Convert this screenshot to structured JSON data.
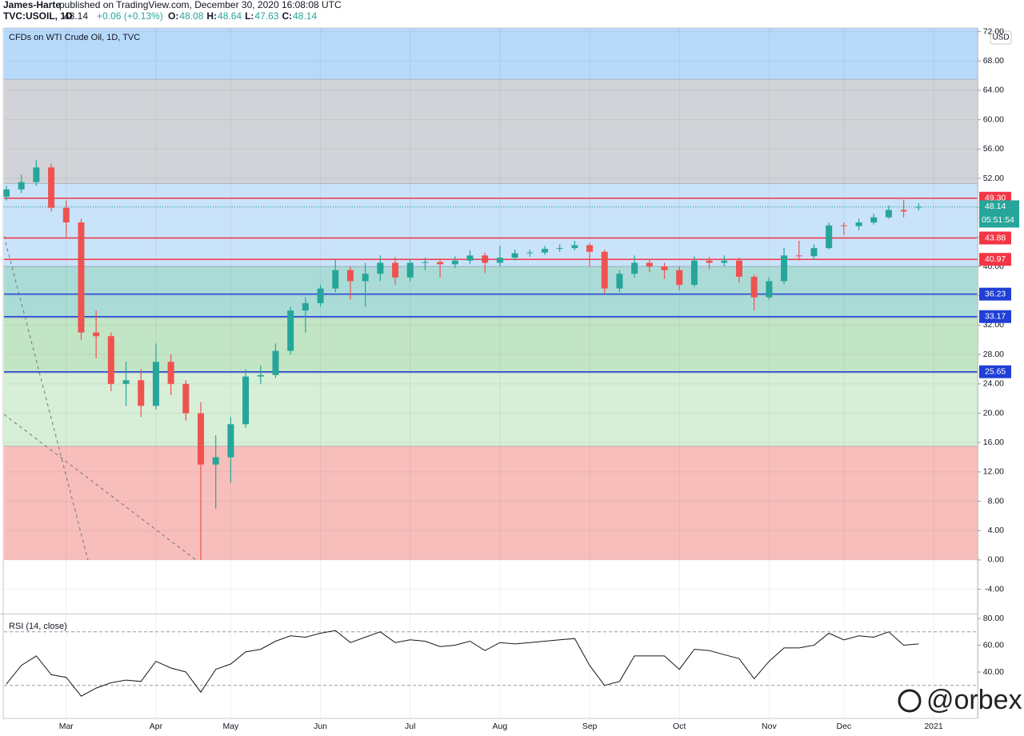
{
  "header": {
    "author": "James-Harte",
    "published": "published on TradingView.com, December 30, 2020 16:08:08 UTC",
    "symbol": "TVC:USOIL, 1D",
    "last": "48.14",
    "change": "+0.06 (+0.13%)",
    "ohlc": [
      {
        "key": "O:",
        "value": "48.08"
      },
      {
        "key": "H:",
        "value": "48.64"
      },
      {
        "key": "L:",
        "value": "47.63"
      },
      {
        "key": "C:",
        "value": "48.14"
      }
    ]
  },
  "chart_data": [
    {
      "type": "candlestick",
      "title": "CFDs on WTI Crude Oil, 1D, TVC",
      "currency": "USD",
      "categories": [
        null,
        null,
        null,
        null,
        "Mar",
        null,
        null,
        null,
        null,
        null,
        "Apr",
        null,
        null,
        null,
        null,
        "May",
        null,
        null,
        null,
        null,
        null,
        "Jun",
        null,
        null,
        null,
        null,
        null,
        "Jul",
        null,
        null,
        null,
        null,
        null,
        "Aug",
        null,
        null,
        null,
        null,
        null,
        "Sep",
        null,
        null,
        null,
        null,
        null,
        "Oct",
        null,
        null,
        null,
        null,
        null,
        "Nov",
        null,
        null,
        null,
        null,
        "Dec",
        null,
        null,
        null,
        null,
        null,
        "2021"
      ],
      "open": [
        49.5,
        50.5,
        51.5,
        53.5,
        48,
        46,
        31,
        30.5,
        24,
        24.5,
        21,
        27,
        24,
        20,
        13,
        14,
        18.5,
        25,
        25.2,
        28.5,
        34,
        35,
        37,
        39.5,
        38,
        39,
        40.5,
        38.5,
        40.5,
        40.6,
        40.3,
        40.8,
        41.5,
        40.5,
        41.2,
        41.8,
        41.9,
        42.4,
        42.5,
        42.9,
        42,
        37,
        39,
        40.5,
        40,
        39.5,
        37.5,
        40.8,
        40.5,
        40.8,
        38.6,
        35.8,
        38,
        41.5,
        41.4,
        42.5,
        45.6,
        45.5,
        46,
        46.7,
        47.7,
        48.08,
        null
      ],
      "high": [
        51,
        52.5,
        54.5,
        54,
        49,
        46.5,
        34,
        31,
        27,
        26,
        29.5,
        28,
        24.5,
        21.5,
        17,
        19.5,
        26,
        26.5,
        29.5,
        34.5,
        35.8,
        37.5,
        41,
        40,
        40.5,
        41.5,
        41.3,
        41,
        41.2,
        41,
        41.4,
        42.2,
        41.9,
        42.8,
        42.3,
        42.3,
        42.8,
        43,
        43.5,
        43.2,
        42.3,
        39.5,
        41.5,
        41,
        40.5,
        40,
        41.4,
        41.3,
        41.5,
        41.2,
        38.9,
        38.5,
        42.5,
        43.5,
        43,
        46,
        46,
        46.5,
        47.2,
        48.3,
        49.1,
        48.64,
        null
      ],
      "low": [
        49,
        50,
        51,
        47.5,
        44,
        30,
        27.5,
        23,
        21,
        19.5,
        20.5,
        22.5,
        19,
        0,
        7,
        10.5,
        18,
        24,
        24.8,
        28,
        31,
        34.5,
        36.5,
        35.5,
        34.5,
        38,
        37.5,
        38,
        39.5,
        38.5,
        39.8,
        40.3,
        39.1,
        40,
        40.8,
        41.3,
        41.6,
        42,
        42.2,
        40,
        36.3,
        36.5,
        38.5,
        39.2,
        38.3,
        36.8,
        37.2,
        39.6,
        40,
        37.8,
        34,
        35.5,
        37.6,
        40.8,
        40.9,
        42.3,
        44.3,
        44.9,
        45.7,
        46.5,
        46.7,
        47.63,
        null
      ],
      "close": [
        50.5,
        51.5,
        53.5,
        48,
        46,
        31,
        30.5,
        24,
        24.5,
        21,
        27,
        24,
        20,
        13,
        14,
        18.5,
        25,
        25.2,
        28.5,
        34,
        35,
        37,
        39.5,
        38,
        39,
        40.5,
        38.5,
        40.5,
        40.6,
        40.3,
        40.8,
        41.5,
        40.5,
        41.2,
        41.8,
        41.9,
        42.4,
        42.5,
        42.9,
        42,
        37,
        39,
        40.5,
        40,
        39.5,
        37.5,
        40.8,
        40.5,
        40.8,
        38.6,
        35.8,
        38,
        41.5,
        41.4,
        42.5,
        45.6,
        45.5,
        46,
        46.7,
        47.7,
        47.5,
        48.14,
        null
      ],
      "up_color": "#26a69a",
      "down_color": "#ef5350",
      "ylim": [
        -7.2,
        72.5
      ],
      "yticks": [
        {
          "value": -4,
          "label": "-4.00"
        },
        {
          "value": 0,
          "label": "0.00"
        },
        {
          "value": 4,
          "label": "4.00"
        },
        {
          "value": 8,
          "label": "8.00"
        },
        {
          "value": 12,
          "label": "12.00"
        },
        {
          "value": 16,
          "label": "16.00"
        },
        {
          "value": 20,
          "label": "20.00"
        },
        {
          "value": 24,
          "label": "24.00"
        },
        {
          "value": 28,
          "label": "28.00"
        },
        {
          "value": 32,
          "label": "32.00"
        },
        {
          "value": 36,
          "label": "36.00"
        },
        {
          "value": 40,
          "label": "40.00"
        },
        {
          "value": 44,
          "label": "44.00"
        },
        {
          "value": 48,
          "label": "48.00"
        },
        {
          "value": 52,
          "label": "52.00"
        },
        {
          "value": 56,
          "label": "56.00"
        },
        {
          "value": 60,
          "label": "60.00"
        },
        {
          "value": 64,
          "label": "64.00"
        },
        {
          "value": 68,
          "label": "68.00"
        },
        {
          "value": 72,
          "label": "72.00"
        }
      ],
      "grid": true,
      "zones": [
        {
          "from": 65.5,
          "to": 72.5,
          "color": "#b3d7fa"
        },
        {
          "from": 51.3,
          "to": 65.5,
          "color": "#cfd1d6"
        },
        {
          "from": 40,
          "to": 51.3,
          "color": "#c6e1fa"
        },
        {
          "from": 33,
          "to": 40,
          "color": "#a6d9d5"
        },
        {
          "from": 25.5,
          "to": 33,
          "color": "#bfe4c2"
        },
        {
          "from": 15.5,
          "to": 25.5,
          "color": "#d5edd5"
        },
        {
          "from": 0,
          "to": 15.5,
          "color": "#f8bab7"
        }
      ],
      "levels": [
        {
          "value": 49.3,
          "label": "49.30",
          "color": "#f23645"
        },
        {
          "value": 43.88,
          "label": "43.88",
          "color": "#f23645"
        },
        {
          "value": 40.97,
          "label": "40.97",
          "color": "#f23645"
        },
        {
          "value": 36.23,
          "label": "36.23",
          "color": "#1f3fd6"
        },
        {
          "value": 33.17,
          "label": "33.17",
          "color": "#1f3fd6"
        },
        {
          "value": 25.65,
          "label": "25.65",
          "color": "#1f3fd6"
        }
      ],
      "last_price": {
        "value": 48.14,
        "label": "48.14",
        "countdown": "05:51:54",
        "color": "#26a69a"
      }
    },
    {
      "type": "line",
      "title": "RSI (14, close)",
      "values": [
        31,
        45,
        52,
        38,
        36,
        22,
        28,
        32,
        34,
        33,
        48,
        43,
        40,
        25,
        42,
        46,
        55,
        57,
        63,
        67,
        66,
        69,
        71,
        62,
        66,
        70,
        62,
        64,
        63,
        59,
        60,
        63,
        56,
        62,
        61,
        62,
        63,
        64,
        65,
        45,
        30,
        33,
        52,
        52,
        52,
        42,
        57,
        56,
        53,
        50,
        35,
        48,
        58,
        58,
        60,
        69,
        64,
        67,
        66,
        70,
        60,
        61,
        null
      ],
      "color": "#131722",
      "ylim": [
        5.4,
        83
      ],
      "yticks": [
        {
          "value": 40,
          "label": "40.00"
        },
        {
          "value": 60,
          "label": "60.00"
        },
        {
          "value": 80,
          "label": "80.00"
        }
      ],
      "bands": [
        30,
        70
      ]
    }
  ],
  "watermark": "@orbex"
}
